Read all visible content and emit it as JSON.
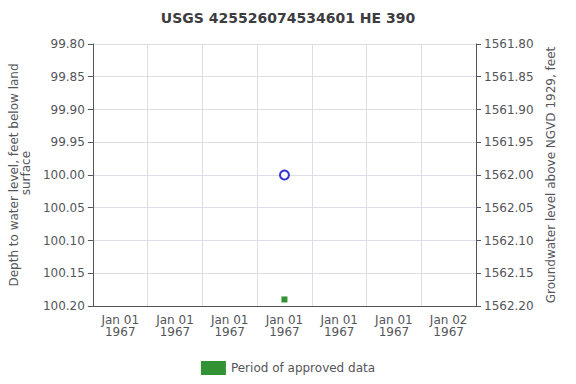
{
  "chart_data": {
    "type": "scatter",
    "title": "USGS 425526074534601 HE 390",
    "categories": [
      "Jan 01\n1967",
      "Jan 01\n1967",
      "Jan 01\n1967",
      "Jan 01\n1967",
      "Jan 01\n1967",
      "Jan 01\n1967",
      "Jan 02\n1967"
    ],
    "series": [
      {
        "color": "#0000cc",
        "marker": "open_circle",
        "values": [
          null,
          null,
          null,
          100.0,
          null,
          null,
          null
        ]
      },
      {
        "name": "Period of approved data",
        "color": "#007700",
        "marker": "square",
        "values": [
          null,
          null,
          null,
          100.19,
          null,
          null,
          null
        ]
      }
    ],
    "ylabel": "Depth to water level, feet below land\n surface",
    "y2label": "Groundwater level above NGVD 1929, feet",
    "ylim": [
      100.2,
      99.8
    ],
    "yticks": [
      {
        "value": 99.8,
        "label": "99.80"
      },
      {
        "value": 99.85,
        "label": "99.85"
      },
      {
        "value": 99.9,
        "label": "99.90"
      },
      {
        "value": 99.95,
        "label": "99.95"
      },
      {
        "value": 100.0,
        "label": "100.00"
      },
      {
        "value": 100.05,
        "label": "100.05"
      },
      {
        "value": 100.1,
        "label": "100.10"
      },
      {
        "value": 100.15,
        "label": "100.15"
      },
      {
        "value": 100.2,
        "label": "100.20"
      }
    ],
    "y2lim": [
      1562.2,
      1561.8
    ],
    "y2ticks": [
      {
        "value": 1561.8,
        "label": "1561.80"
      },
      {
        "value": 1561.85,
        "label": "1561.85"
      },
      {
        "value": 1561.9,
        "label": "1561.90"
      },
      {
        "value": 1561.95,
        "label": "1561.95"
      },
      {
        "value": 1562.0,
        "label": "1562.00"
      },
      {
        "value": 1562.05,
        "label": "1562.05"
      },
      {
        "value": 1562.1,
        "label": "1562.10"
      },
      {
        "value": 1562.15,
        "label": "1562.15"
      },
      {
        "value": 1562.2,
        "label": "1562.20"
      }
    ],
    "grid": true,
    "legend": "bottom"
  }
}
